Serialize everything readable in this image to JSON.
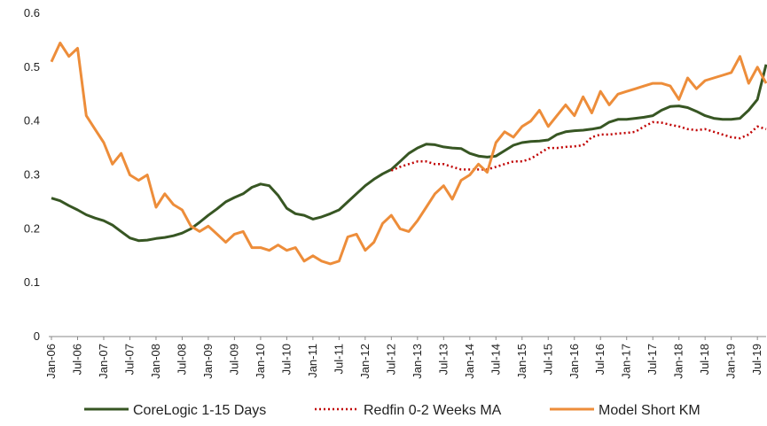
{
  "chart_data": {
    "type": "line",
    "categories": [
      "Jan-06",
      null,
      null,
      "Jul-06",
      null,
      null,
      "Jan-07",
      null,
      null,
      "Jul-07",
      null,
      null,
      "Jan-08",
      null,
      null,
      "Jul-08",
      null,
      null,
      "Jan-09",
      null,
      null,
      "Jul-09",
      null,
      null,
      "Jan-10",
      null,
      null,
      "Jul-10",
      null,
      null,
      "Jan-11",
      null,
      null,
      "Jul-11",
      null,
      null,
      "Jan-12",
      null,
      null,
      "Jul-12",
      null,
      null,
      "Jan-13",
      null,
      null,
      "Jul-13",
      null,
      null,
      "Jan-14",
      null,
      null,
      "Jul-14",
      null,
      null,
      "Jan-15",
      null,
      null,
      "Jul-15",
      null,
      null,
      "Jan-16",
      null,
      null,
      "Jul-16",
      null,
      null,
      "Jan-17",
      null,
      null,
      "Jul-17",
      null,
      null,
      "Jan-18",
      null,
      null,
      "Jul-18",
      null,
      null,
      "Jan-19",
      null,
      null,
      "Jul-19",
      null
    ],
    "series": [
      {
        "name": "CoreLogic 1-15 Days",
        "color": "#375623",
        "style": "solid",
        "values": [
          0.257,
          0.252,
          0.243,
          0.235,
          0.226,
          0.22,
          0.215,
          0.207,
          0.195,
          0.183,
          0.178,
          0.179,
          0.182,
          0.184,
          0.187,
          0.192,
          0.2,
          0.212,
          0.225,
          0.237,
          0.25,
          0.258,
          0.265,
          0.277,
          0.283,
          0.28,
          0.262,
          0.238,
          0.228,
          0.225,
          0.218,
          0.222,
          0.228,
          0.235,
          0.25,
          0.265,
          0.28,
          0.292,
          0.302,
          0.31,
          0.325,
          0.34,
          0.35,
          0.357,
          0.356,
          0.352,
          0.35,
          0.349,
          0.34,
          0.335,
          0.333,
          0.335,
          0.345,
          0.355,
          0.36,
          0.362,
          0.363,
          0.365,
          0.375,
          0.38,
          0.382,
          0.383,
          0.385,
          0.388,
          0.398,
          0.403,
          0.403,
          0.405,
          0.407,
          0.41,
          0.42,
          0.427,
          0.428,
          0.425,
          0.418,
          0.41,
          0.405,
          0.403,
          0.403,
          0.405,
          0.42,
          0.44,
          0.505
        ]
      },
      {
        "name": "Redfin 0-2 Weeks MA",
        "color": "#c00000",
        "style": "dotted",
        "values": [
          null,
          null,
          null,
          null,
          null,
          null,
          null,
          null,
          null,
          null,
          null,
          null,
          null,
          null,
          null,
          null,
          null,
          null,
          null,
          null,
          null,
          null,
          null,
          null,
          null,
          null,
          null,
          null,
          null,
          null,
          null,
          null,
          null,
          null,
          null,
          null,
          null,
          null,
          null,
          0.308,
          0.315,
          0.32,
          0.325,
          0.325,
          0.32,
          0.32,
          0.315,
          0.31,
          0.31,
          0.31,
          0.31,
          0.315,
          0.32,
          0.325,
          0.325,
          0.33,
          0.34,
          0.35,
          0.35,
          0.352,
          0.353,
          0.355,
          0.37,
          0.375,
          0.375,
          0.377,
          0.378,
          0.38,
          0.39,
          0.398,
          0.397,
          0.393,
          0.39,
          0.385,
          0.383,
          0.385,
          0.38,
          0.375,
          0.37,
          0.368,
          0.375,
          0.39,
          0.385
        ]
      },
      {
        "name": "Model Short KM",
        "color": "#ed8d3a",
        "style": "solid",
        "values": [
          0.51,
          0.545,
          0.52,
          0.535,
          0.41,
          0.385,
          0.36,
          0.32,
          0.34,
          0.3,
          0.29,
          0.3,
          0.24,
          0.265,
          0.245,
          0.235,
          0.205,
          0.195,
          0.205,
          0.19,
          0.175,
          0.19,
          0.195,
          0.165,
          0.165,
          0.16,
          0.17,
          0.16,
          0.165,
          0.14,
          0.15,
          0.14,
          0.135,
          0.14,
          0.185,
          0.19,
          0.16,
          0.175,
          0.21,
          0.225,
          0.2,
          0.195,
          0.215,
          0.24,
          0.265,
          0.28,
          0.255,
          0.29,
          0.3,
          0.32,
          0.305,
          0.36,
          0.38,
          0.37,
          0.39,
          0.4,
          0.42,
          0.39,
          0.41,
          0.43,
          0.41,
          0.445,
          0.415,
          0.455,
          0.43,
          0.45,
          0.455,
          0.46,
          0.465,
          0.47,
          0.47,
          0.465,
          0.44,
          0.48,
          0.46,
          0.475,
          0.48,
          0.485,
          0.49,
          0.52,
          0.47,
          0.5,
          0.47
        ]
      }
    ],
    "ylim": [
      0,
      0.6
    ],
    "yticks": [
      0,
      0.1,
      0.2,
      0.3,
      0.4,
      0.5,
      0.6
    ],
    "grid": false,
    "legend": "bottom"
  }
}
